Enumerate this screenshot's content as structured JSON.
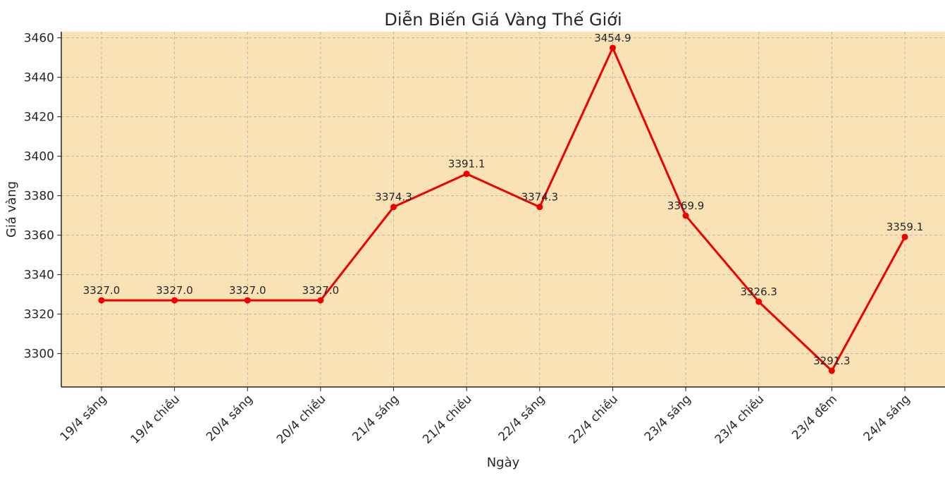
{
  "chart_data": {
    "type": "line",
    "title": "Diễn Biến Giá Vàng Thế Giới",
    "x_label": "Ngày",
    "y_label": "Giá vàng",
    "categories": [
      "19/4 sáng",
      "19/4 chiều",
      "20/4 sáng",
      "20/4 chiều",
      "21/4 sáng",
      "21/4 chiều",
      "22/4 sáng",
      "22/4 chiều",
      "23/4 sáng",
      "23/4 chiều",
      "23/4 đêm",
      "24/4 sáng"
    ],
    "series": [
      {
        "name": "Giá vàng",
        "color": "#ee0000",
        "values": [
          3327.0,
          3327.0,
          3327.0,
          3327.0,
          3374.3,
          3391.1,
          3374.3,
          3454.9,
          3369.9,
          3326.3,
          3291.3,
          3359.1
        ],
        "value_labels": [
          "3327.0",
          "3327.0",
          "3327.0",
          "3327.0",
          "3374.3",
          "3391.1",
          "3374.3",
          "3454.9",
          "3369.9",
          "3326.3",
          "3291.3",
          "3359.1"
        ]
      }
    ],
    "ylim": [
      3283.1,
      3463.1
    ],
    "yticks": [
      3300,
      3320,
      3340,
      3360,
      3380,
      3400,
      3420,
      3440,
      3460
    ],
    "grid": true,
    "background": "#f8e2b6"
  }
}
